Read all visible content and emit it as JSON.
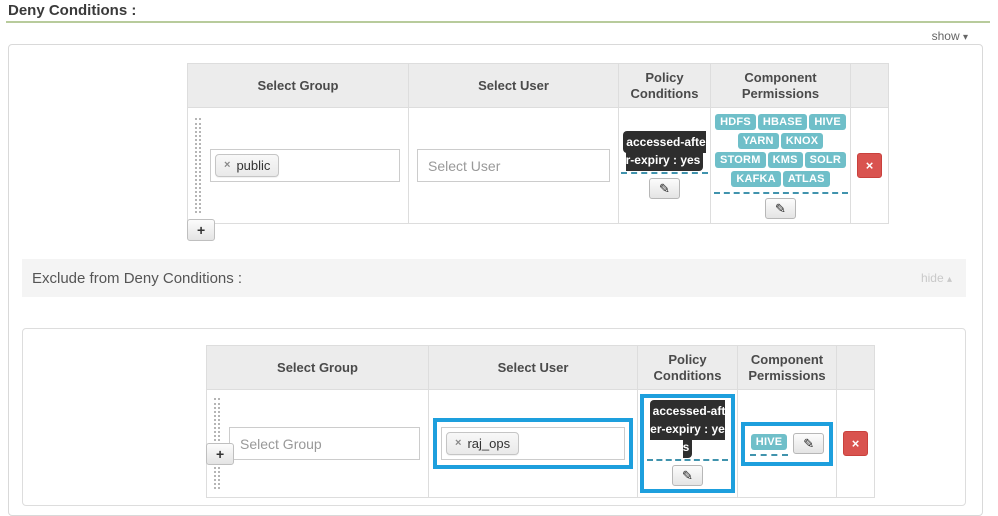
{
  "header": {
    "title": "Deny Conditions :",
    "show_label": "show"
  },
  "exclude_header": {
    "title": "Exclude from Deny Conditions :",
    "hide_label": "hide"
  },
  "deny_table": {
    "columns": [
      "Select Group",
      "Select User",
      "Policy Conditions",
      "Component Permissions"
    ],
    "row": {
      "group_tags": [
        "public"
      ],
      "user_placeholder": "Select User",
      "policy_condition": "accessed-after-expiry : yes",
      "permissions": [
        "HDFS",
        "HBASE",
        "HIVE",
        "YARN",
        "KNOX",
        "STORM",
        "KMS",
        "SOLR",
        "KAFKA",
        "ATLAS"
      ]
    },
    "add_button": "+"
  },
  "exclude_table": {
    "columns": [
      "Select Group",
      "Select User",
      "Policy Conditions",
      "Component Permissions"
    ],
    "row": {
      "group_placeholder": "Select Group",
      "user_tags": [
        "raj_ops"
      ],
      "policy_condition": "accessed-after-expiry : yes",
      "permissions": [
        "HIVE"
      ]
    },
    "add_button": "+"
  },
  "icons": {
    "remove_tag": "×",
    "edit_pencil": "✎",
    "delete": "×",
    "caret_down": "▾",
    "caret_up": "▴"
  },
  "colors": {
    "highlight_blue": "#1d9fdd",
    "badge_teal": "#6fbfc9",
    "danger_red": "#d9534f",
    "divider_green": "#b8cb9c",
    "header_bg": "#ececec"
  }
}
